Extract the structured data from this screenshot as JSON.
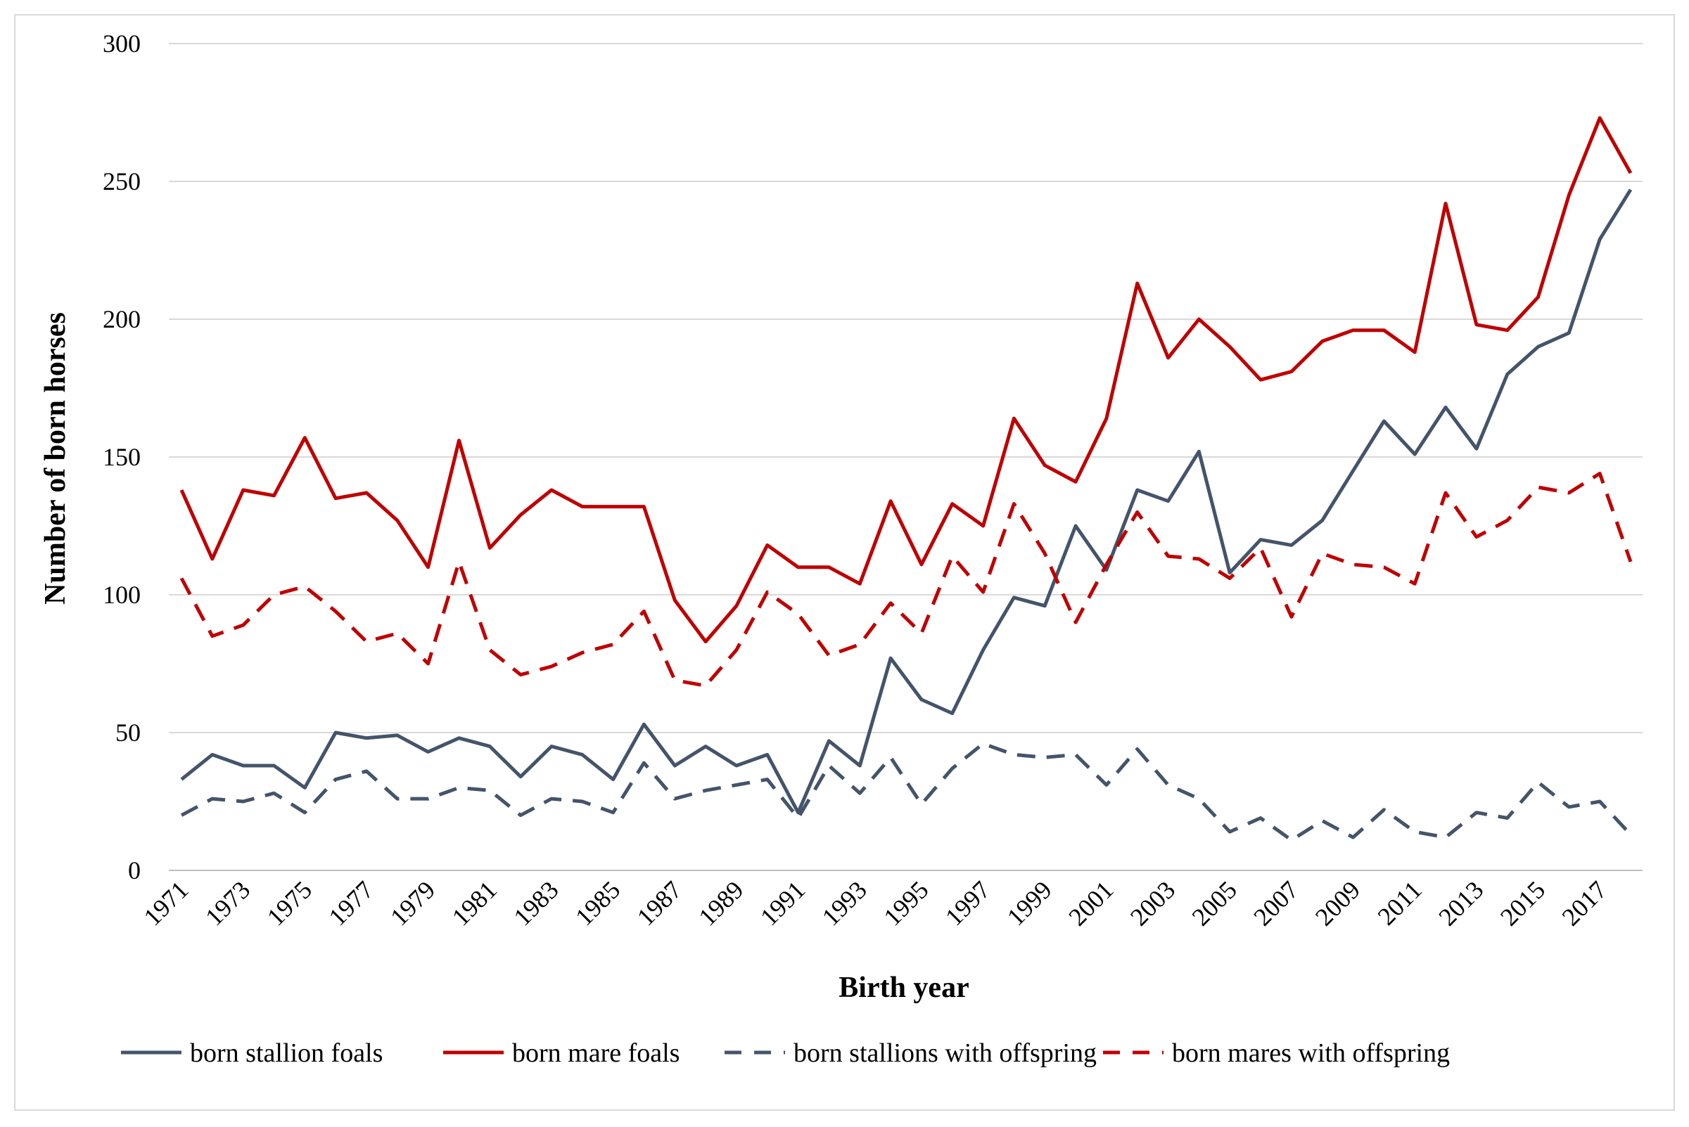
{
  "chart_data": {
    "type": "line",
    "title": "",
    "xlabel": "Birth year",
    "ylabel": "Number of born horses",
    "ylim": [
      0,
      300
    ],
    "yticks": [
      0,
      50,
      100,
      150,
      200,
      250,
      300
    ],
    "grid": true,
    "legend_position": "bottom",
    "x": [
      1971,
      1972,
      1973,
      1974,
      1975,
      1976,
      1977,
      1978,
      1979,
      1980,
      1981,
      1982,
      1983,
      1984,
      1985,
      1986,
      1987,
      1988,
      1989,
      1990,
      1991,
      1992,
      1993,
      1994,
      1995,
      1996,
      1997,
      1998,
      1999,
      2000,
      2001,
      2002,
      2003,
      2004,
      2005,
      2006,
      2007,
      2008,
      2009,
      2010,
      2011,
      2012,
      2013,
      2014,
      2015,
      2016,
      2017,
      2018
    ],
    "xtick_labels": [
      "1971",
      "1973",
      "1975",
      "1977",
      "1979",
      "1981",
      "1983",
      "1985",
      "1987",
      "1989",
      "1991",
      "1993",
      "1995",
      "1997",
      "1999",
      "2001",
      "2003",
      "2005",
      "2007",
      "2009",
      "2011",
      "2013",
      "2015",
      "2017"
    ],
    "series": [
      {
        "name": "born stallion foals",
        "color": "#44546a",
        "style": "solid",
        "values": [
          33,
          42,
          38,
          38,
          30,
          50,
          48,
          49,
          43,
          48,
          45,
          34,
          45,
          42,
          33,
          53,
          38,
          45,
          38,
          42,
          21,
          47,
          38,
          77,
          62,
          57,
          80,
          99,
          96,
          125,
          109,
          138,
          134,
          152,
          108,
          120,
          118,
          127,
          145,
          163,
          151,
          168,
          153,
          180,
          190,
          195,
          229,
          247
        ]
      },
      {
        "name": "born mare foals",
        "color": "#c00000",
        "style": "solid",
        "values": [
          138,
          113,
          138,
          136,
          157,
          135,
          137,
          127,
          110,
          156,
          117,
          129,
          138,
          132,
          132,
          132,
          98,
          83,
          96,
          118,
          110,
          110,
          104,
          134,
          111,
          133,
          125,
          164,
          147,
          141,
          164,
          213,
          186,
          200,
          190,
          178,
          181,
          192,
          196,
          196,
          188,
          242,
          198,
          196,
          208,
          245,
          273,
          253
        ]
      },
      {
        "name": "born stallions with offspring",
        "color": "#44546a",
        "style": "dashed",
        "values": [
          20,
          26,
          25,
          28,
          21,
          33,
          36,
          26,
          26,
          30,
          29,
          20,
          26,
          25,
          21,
          39,
          26,
          29,
          31,
          33,
          19,
          38,
          28,
          41,
          24,
          37,
          46,
          42,
          41,
          42,
          31,
          44,
          31,
          26,
          14,
          19,
          11,
          18,
          12,
          22,
          14,
          12,
          21,
          19,
          32,
          23,
          25,
          13
        ]
      },
      {
        "name": "born mares with offspring",
        "color": "#c00000",
        "style": "dashed",
        "values": [
          106,
          85,
          89,
          100,
          103,
          94,
          83,
          86,
          75,
          112,
          80,
          71,
          74,
          79,
          82,
          94,
          69,
          67,
          80,
          101,
          93,
          78,
          82,
          97,
          86,
          114,
          101,
          133,
          115,
          90,
          111,
          130,
          114,
          113,
          106,
          117,
          92,
          115,
          111,
          110,
          104,
          137,
          121,
          127,
          139,
          137,
          144,
          112
        ]
      }
    ]
  }
}
